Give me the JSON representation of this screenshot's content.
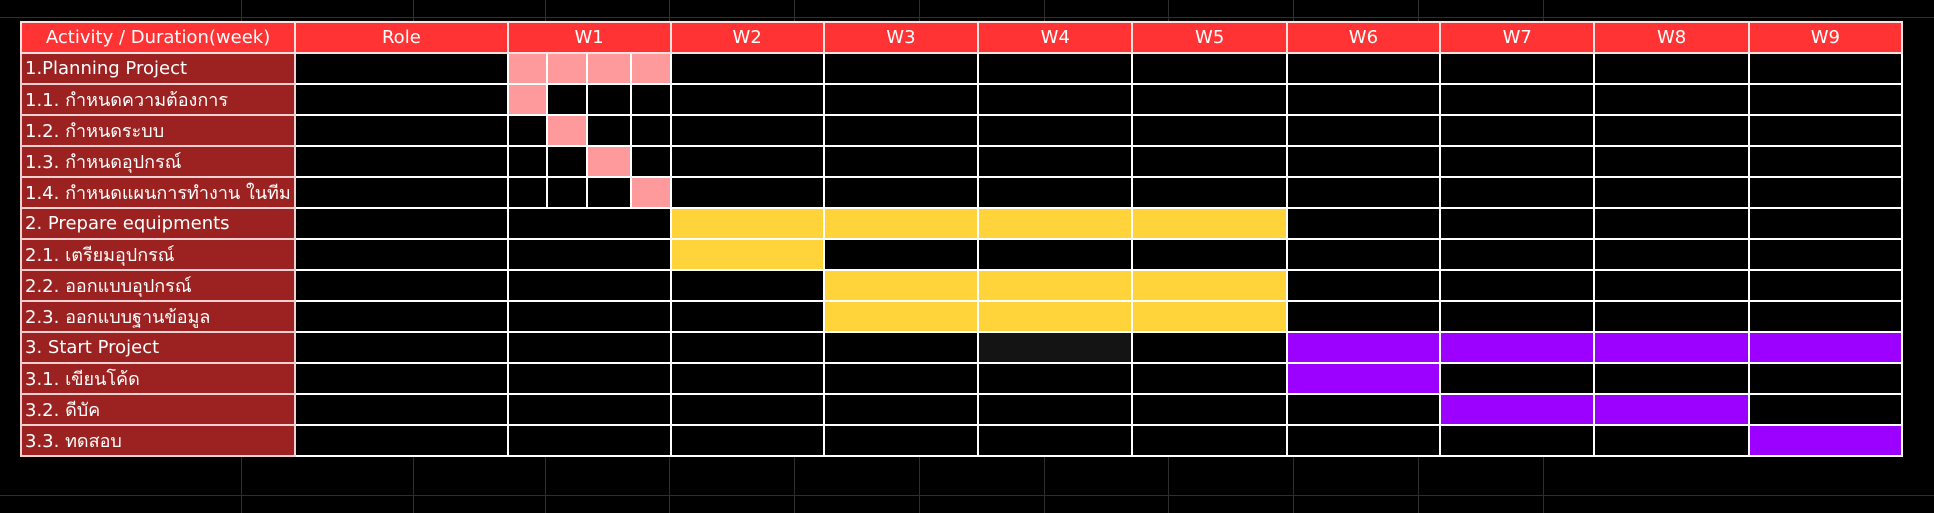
{
  "header": {
    "activity": "Activity / Duration(week)",
    "role": "Role",
    "weeks": [
      "W1",
      "W2",
      "W3",
      "W4",
      "W5",
      "W6",
      "W7",
      "W8",
      "W9"
    ]
  },
  "colors": {
    "header_bg": "#ff3333",
    "activity_bg": "#9b2220",
    "planning": "#ff9a9c",
    "prepare": "#ffd43b",
    "start": "#9c00ff",
    "grid": "#ffffff"
  },
  "rows": [
    {
      "activity": "1.Planning Project"
    },
    {
      "activity": "1.1. กำหนดความต้องการ"
    },
    {
      "activity": "1.2. กำหนดระบบ"
    },
    {
      "activity": "1.3. กำหนดอุปกรณ์"
    },
    {
      "activity": "1.4. กำหนดแผนการทำงาน ในทีม"
    },
    {
      "activity": "2. Prepare equipments"
    },
    {
      "activity": "2.1. เตรียมอุปกรณ์"
    },
    {
      "activity": "2.2. ออกแบบอุปกรณ์"
    },
    {
      "activity": "2.3. ออกแบบฐานข้อมูล"
    },
    {
      "activity": "3. Start Project"
    },
    {
      "activity": "3.1. เขียนโค้ด"
    },
    {
      "activity": "3.2. ดีบัค"
    },
    {
      "activity": "3.3. ทดสอบ"
    }
  ]
}
